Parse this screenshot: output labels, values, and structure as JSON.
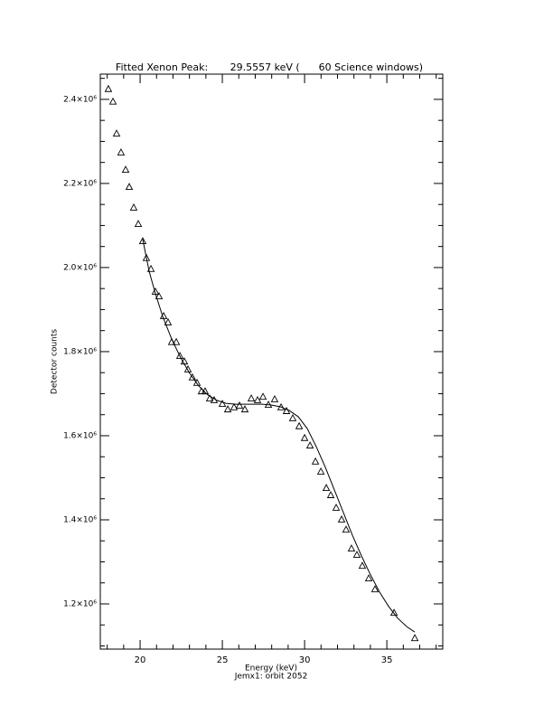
{
  "chart_data": {
    "type": "scatter",
    "title": "Fitted Xenon Peak:       29.5557 keV (      60 Science windows)",
    "x_label": "Energy (keV)",
    "subtitle": "Jemx1: orbit 2052",
    "y_label": "Detector counts",
    "xlim": [
      17.58,
      38.4
    ],
    "ylim": [
      1092500,
      2460000
    ],
    "xticks": [
      20,
      25,
      30,
      35
    ],
    "xminorticks": [
      18,
      19,
      21,
      22,
      23,
      24,
      26,
      27,
      28,
      29,
      31,
      32,
      33,
      34,
      36,
      37,
      38
    ],
    "yticks": [
      {
        "value": 1200000,
        "label": "1.2×10⁶"
      },
      {
        "value": 1400000,
        "label": "1.4×10⁶"
      },
      {
        "value": 1600000,
        "label": "1.6×10⁶"
      },
      {
        "value": 1800000,
        "label": "1.8×10⁶"
      },
      {
        "value": 2000000,
        "label": "2.0×10⁶"
      },
      {
        "value": 2200000,
        "label": "2.2×10⁶"
      },
      {
        "value": 2400000,
        "label": "2.4×10⁶"
      }
    ],
    "yminorticks": [
      1100000,
      1150000,
      1250000,
      1300000,
      1350000,
      1450000,
      1500000,
      1550000,
      1650000,
      1700000,
      1750000,
      1850000,
      1900000,
      1950000,
      2050000,
      2100000,
      2150000,
      2250000,
      2300000,
      2350000,
      2450000
    ],
    "series": [
      {
        "marker": "triangle",
        "color": "#000000",
        "x": [
          18.07,
          18.35,
          18.57,
          18.84,
          19.12,
          19.34,
          19.61,
          19.89,
          20.16,
          20.38,
          20.66,
          20.93,
          21.15,
          21.43,
          21.7,
          21.92,
          22.2,
          22.42,
          22.69,
          22.91,
          23.18,
          23.46,
          23.73,
          23.95,
          24.23,
          24.5,
          25.0,
          25.33,
          25.71,
          26.04,
          26.37,
          26.76,
          27.14,
          27.47,
          27.8,
          28.18,
          28.57,
          28.9,
          29.28,
          29.67,
          30.0,
          30.33,
          30.66,
          30.99,
          31.32,
          31.59,
          31.92,
          32.25,
          32.52,
          32.85,
          33.18,
          33.51,
          33.9,
          34.28,
          35.44,
          36.7
        ],
        "values": [
          2424000,
          2394000,
          2318000,
          2273000,
          2232000,
          2191000,
          2142000,
          2103000,
          2062000,
          2022000,
          1996000,
          1942000,
          1931000,
          1884000,
          1869000,
          1822000,
          1822000,
          1789000,
          1776000,
          1757000,
          1738000,
          1725000,
          1705000,
          1705000,
          1688000,
          1684000,
          1675000,
          1662000,
          1667000,
          1671000,
          1662000,
          1688000,
          1684000,
          1692000,
          1673000,
          1686000,
          1667000,
          1658000,
          1641000,
          1622000,
          1594000,
          1576000,
          1538000,
          1514000,
          1475000,
          1458000,
          1428000,
          1400000,
          1376000,
          1331000,
          1316000,
          1290000,
          1260000,
          1234000,
          1178000,
          1118000
        ]
      },
      {
        "marker": "line",
        "color": "#000000",
        "x": [
          20.16,
          20.55,
          20.93,
          21.37,
          21.92,
          22.47,
          23.02,
          23.57,
          24.12,
          24.67,
          25.22,
          25.77,
          26.32,
          26.87,
          27.42,
          27.97,
          28.52,
          29.07,
          29.62,
          30.16,
          30.71,
          31.26,
          31.81,
          32.36,
          32.91,
          33.46,
          34.01,
          34.56,
          35.11,
          35.66,
          36.21,
          36.7
        ],
        "values": [
          2067000,
          1991000,
          1938000,
          1884000,
          1830000,
          1785000,
          1748000,
          1718000,
          1697000,
          1684000,
          1677000,
          1675000,
          1675000,
          1675000,
          1675000,
          1673000,
          1669000,
          1660000,
          1645000,
          1617000,
          1574000,
          1525000,
          1471000,
          1417000,
          1363000,
          1314000,
          1269000,
          1228000,
          1194000,
          1166000,
          1146000,
          1133000
        ]
      }
    ]
  }
}
